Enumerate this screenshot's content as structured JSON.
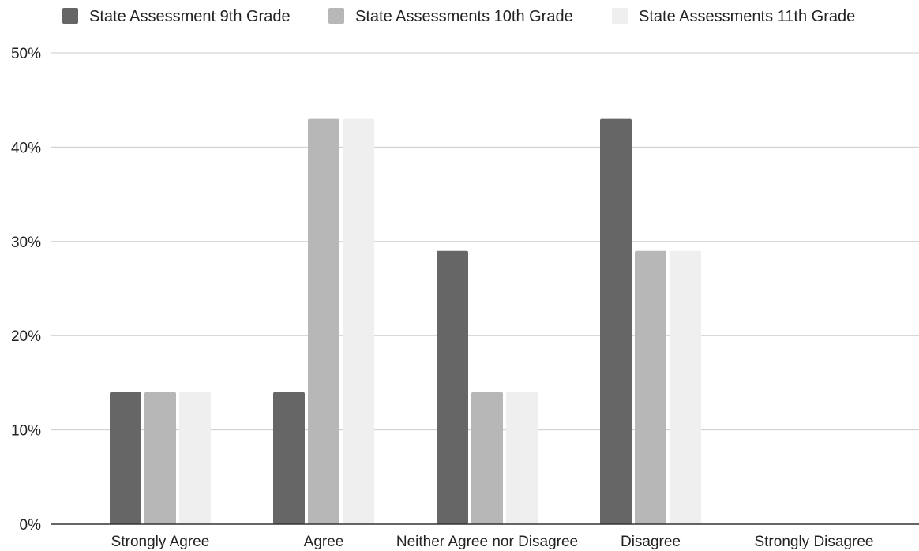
{
  "chart_data": {
    "type": "bar",
    "title": "",
    "xlabel": "",
    "ylabel": "",
    "categories": [
      "Strongly Agree",
      "Agree",
      "Neither Agree nor Disagree",
      "Disagree",
      "Strongly Disagree"
    ],
    "series": [
      {
        "name": "State Assessment 9th Grade",
        "values": [
          14,
          14,
          29,
          43,
          0
        ],
        "color": "#666666"
      },
      {
        "name": "State Assessments 10th Grade",
        "values": [
          14,
          43,
          14,
          29,
          0
        ],
        "color": "#b7b7b7"
      },
      {
        "name": "State Assessments 11th Grade",
        "values": [
          14,
          43,
          14,
          29,
          0
        ],
        "color": "#efefef"
      }
    ],
    "ylim": [
      0,
      50
    ],
    "yticks": [
      0,
      10,
      20,
      30,
      40,
      50
    ],
    "ytick_labels": [
      "0%",
      "10%",
      "20%",
      "30%",
      "40%",
      "50%"
    ],
    "grid": true,
    "legend_position": "top-left"
  }
}
